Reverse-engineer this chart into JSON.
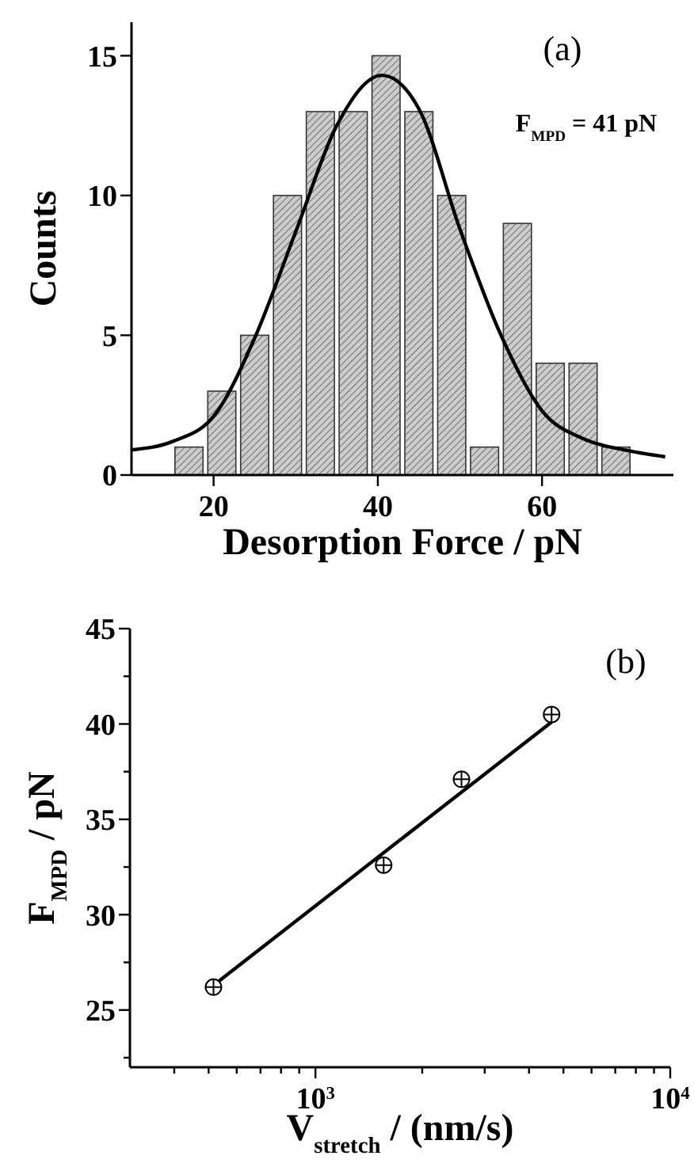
{
  "chart_data": [
    {
      "type": "histogram",
      "xlabel": "Desorption Force / pN",
      "ylabel": "Counts",
      "bins": [
        15,
        19,
        23,
        27,
        31,
        35,
        39,
        43,
        47,
        51,
        55,
        59,
        63,
        67,
        71
      ],
      "values": [
        1,
        3,
        5,
        10,
        13,
        13,
        15,
        13,
        10,
        1,
        9,
        4,
        4,
        1
      ],
      "color": "#cccccc",
      "series": [
        {
          "type": "line",
          "color": "#000000",
          "x": [
            10,
            15,
            20,
            25,
            30,
            35,
            40.5,
            45,
            50,
            55,
            60,
            65,
            70,
            75
          ],
          "values": [
            0.9,
            1.2,
            2.1,
            4.9,
            8.7,
            12.5,
            14.3,
            13.1,
            8.8,
            5.0,
            2.3,
            1.3,
            0.9,
            0.65
          ]
        }
      ],
      "xlim": [
        10,
        76
      ],
      "ylim": [
        0,
        16.2
      ],
      "xticks": [
        20,
        40,
        60
      ],
      "yticks": [
        0,
        5,
        10,
        15
      ],
      "grid": false,
      "annotations": [
        "(a)",
        "F$_{MPD}$ = 41 pN"
      ]
    },
    {
      "type": "scatter",
      "xlabel": "V$_{stretch}$ / (nm/s)",
      "ylabel": "F$_{MPD}$ / pN",
      "log": "x",
      "series": [
        {
          "color": "#000000",
          "marker": "circle",
          "x": [
            516,
            1557,
            2580,
            4630
          ],
          "values": [
            26.2,
            32.6,
            37.1,
            40.5
          ]
        },
        {
          "type": "line",
          "color": "#000000",
          "x": [
            516,
            4630
          ],
          "values": [
            26.3,
            40.1
          ]
        }
      ],
      "xlim": [
        300,
        10000
      ],
      "ylim": [
        22,
        45
      ],
      "xticks": [
        {
          "value": 400,
          "label": null
        },
        {
          "value": 500,
          "label": null
        },
        {
          "value": 600,
          "label": null
        },
        {
          "value": 700,
          "label": null
        },
        {
          "value": 800,
          "label": null
        },
        {
          "value": 900,
          "label": null
        },
        {
          "value": 1000,
          "label": "10$^{3}$"
        },
        {
          "value": 2000,
          "label": null
        },
        {
          "value": 3000,
          "label": null
        },
        {
          "value": 4000,
          "label": null
        },
        {
          "value": 5000,
          "label": null
        },
        {
          "value": 6000,
          "label": null
        },
        {
          "value": 7000,
          "label": null
        },
        {
          "value": 8000,
          "label": null
        },
        {
          "value": 9000,
          "label": null
        },
        {
          "value": 10000,
          "label": "10$^{4}$"
        }
      ],
      "yticks": [
        {
          "value": 22.5,
          "label": null
        },
        25,
        {
          "value": 27.5,
          "label": null
        },
        30,
        {
          "value": 32.5,
          "label": null
        },
        35,
        {
          "value": 37.5,
          "label": null
        },
        40,
        {
          "value": 42.5,
          "label": null
        },
        45
      ],
      "grid": false,
      "annotations": [
        "(b)"
      ]
    }
  ]
}
